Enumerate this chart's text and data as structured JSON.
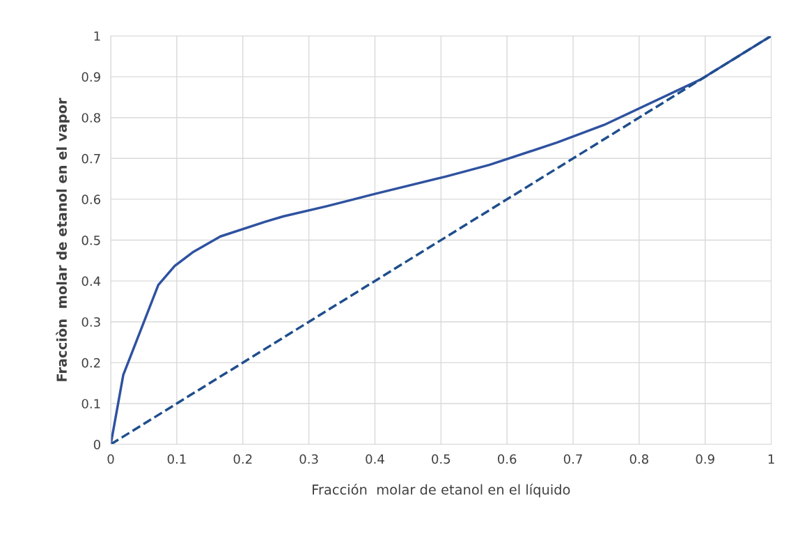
{
  "chart_data": {
    "type": "line",
    "xlabel": "Fracción  molar de etanol en el líquido",
    "ylabel": "Fracciòn  molar de etanol en el vapor",
    "xlim": [
      0,
      1
    ],
    "ylim": [
      0,
      1
    ],
    "xticks": [
      0,
      0.1,
      0.2,
      0.3,
      0.4,
      0.5,
      0.6,
      0.7,
      0.8,
      0.9,
      1
    ],
    "yticks": [
      0,
      0.1,
      0.2,
      0.3,
      0.4,
      0.5,
      0.6,
      0.7,
      0.8,
      0.9,
      1
    ],
    "grid": true,
    "legend": false,
    "marker": "none",
    "series": [
      {
        "color": "#2f52a0",
        "line_style": "solid",
        "x": [
          0,
          0.019,
          0.072,
          0.097,
          0.124,
          0.166,
          0.234,
          0.261,
          0.327,
          0.397,
          0.508,
          0.573,
          0.676,
          0.747,
          0.894,
          1
        ],
        "values": [
          0,
          0.17,
          0.39,
          0.437,
          0.47,
          0.509,
          0.545,
          0.558,
          0.583,
          0.612,
          0.656,
          0.684,
          0.739,
          0.782,
          0.894,
          1
        ]
      },
      {
        "color": "#1f4e8c",
        "line_style": "dashed",
        "x": [
          0,
          1
        ],
        "values": [
          0,
          1
        ]
      }
    ]
  }
}
